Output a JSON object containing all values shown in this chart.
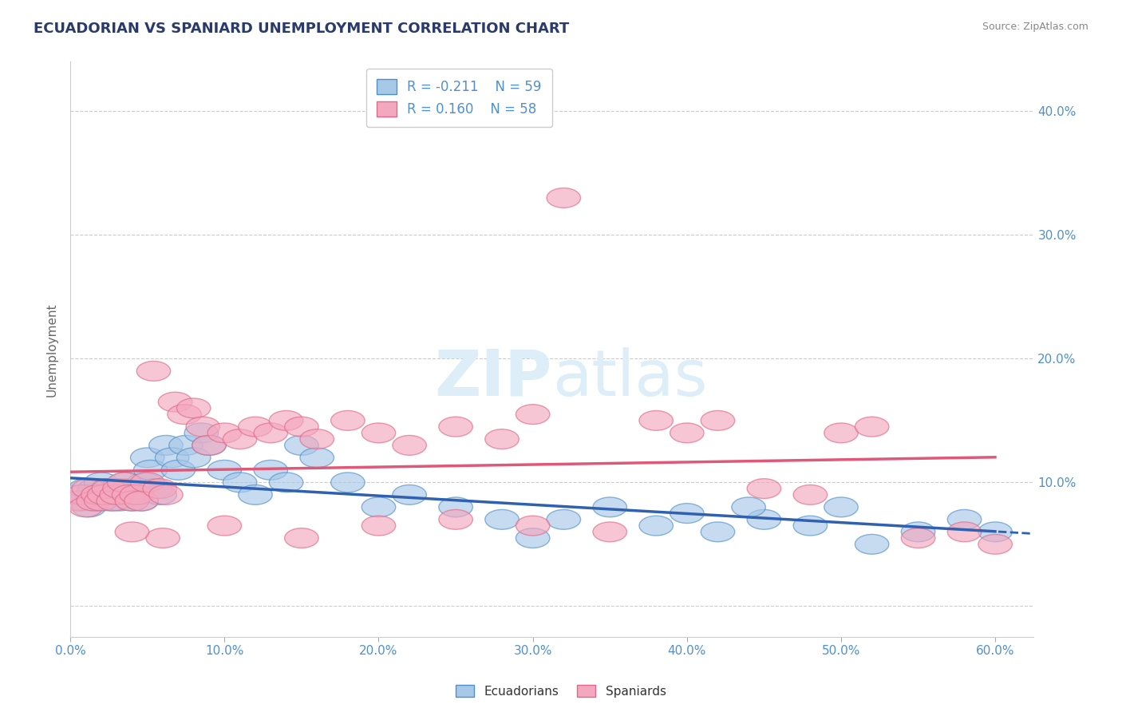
{
  "title": "ECUADORIAN VS SPANIARD UNEMPLOYMENT CORRELATION CHART",
  "source": "Source: ZipAtlas.com",
  "xlabel_ticks": [
    "0.0%",
    "10.0%",
    "20.0%",
    "30.0%",
    "40.0%",
    "50.0%",
    "60.0%"
  ],
  "xlim": [
    0.0,
    0.625
  ],
  "ylim": [
    -0.025,
    0.44
  ],
  "ylabel": "Unemployment",
  "blue_R": -0.211,
  "blue_N": 59,
  "pink_R": 0.16,
  "pink_N": 58,
  "blue_color": "#a8c8e8",
  "pink_color": "#f4a8bf",
  "blue_edge_color": "#5090c8",
  "pink_edge_color": "#e06888",
  "blue_line_color": "#3060b0",
  "pink_line_color": "#e05878",
  "title_color": "#2a3a6a",
  "axis_color": "#5090d0",
  "watermark_color": "#ddeef8",
  "background_color": "#ffffff",
  "blue_scatter_x": [
    0.005,
    0.008,
    0.01,
    0.012,
    0.014,
    0.016,
    0.018,
    0.02,
    0.022,
    0.024,
    0.026,
    0.028,
    0.03,
    0.032,
    0.034,
    0.036,
    0.038,
    0.04,
    0.042,
    0.044,
    0.046,
    0.048,
    0.05,
    0.052,
    0.055,
    0.058,
    0.062,
    0.066,
    0.07,
    0.075,
    0.08,
    0.085,
    0.09,
    0.1,
    0.11,
    0.12,
    0.13,
    0.14,
    0.15,
    0.16,
    0.18,
    0.2,
    0.22,
    0.25,
    0.28,
    0.3,
    0.32,
    0.35,
    0.38,
    0.4,
    0.42,
    0.45,
    0.48,
    0.5,
    0.52,
    0.55,
    0.58,
    0.6,
    0.44
  ],
  "blue_scatter_y": [
    0.09,
    0.085,
    0.095,
    0.08,
    0.09,
    0.095,
    0.085,
    0.1,
    0.09,
    0.095,
    0.085,
    0.09,
    0.095,
    0.085,
    0.09,
    0.1,
    0.095,
    0.085,
    0.09,
    0.095,
    0.085,
    0.1,
    0.12,
    0.11,
    0.095,
    0.09,
    0.13,
    0.12,
    0.11,
    0.13,
    0.12,
    0.14,
    0.13,
    0.11,
    0.1,
    0.09,
    0.11,
    0.1,
    0.13,
    0.12,
    0.1,
    0.08,
    0.09,
    0.08,
    0.07,
    0.055,
    0.07,
    0.08,
    0.065,
    0.075,
    0.06,
    0.07,
    0.065,
    0.08,
    0.05,
    0.06,
    0.07,
    0.06,
    0.08
  ],
  "pink_scatter_x": [
    0.005,
    0.008,
    0.01,
    0.012,
    0.015,
    0.018,
    0.02,
    0.022,
    0.025,
    0.028,
    0.03,
    0.032,
    0.035,
    0.038,
    0.04,
    0.043,
    0.046,
    0.05,
    0.054,
    0.058,
    0.062,
    0.068,
    0.074,
    0.08,
    0.086,
    0.09,
    0.1,
    0.11,
    0.12,
    0.13,
    0.14,
    0.15,
    0.16,
    0.18,
    0.2,
    0.22,
    0.25,
    0.28,
    0.3,
    0.32,
    0.35,
    0.38,
    0.4,
    0.42,
    0.45,
    0.48,
    0.5,
    0.52,
    0.55,
    0.58,
    0.6,
    0.25,
    0.3,
    0.2,
    0.15,
    0.1,
    0.06,
    0.04
  ],
  "pink_scatter_y": [
    0.085,
    0.09,
    0.08,
    0.095,
    0.085,
    0.09,
    0.085,
    0.09,
    0.095,
    0.085,
    0.09,
    0.095,
    0.1,
    0.09,
    0.085,
    0.09,
    0.085,
    0.1,
    0.19,
    0.095,
    0.09,
    0.165,
    0.155,
    0.16,
    0.145,
    0.13,
    0.14,
    0.135,
    0.145,
    0.14,
    0.15,
    0.145,
    0.135,
    0.15,
    0.14,
    0.13,
    0.145,
    0.135,
    0.155,
    0.33,
    0.06,
    0.15,
    0.14,
    0.15,
    0.095,
    0.09,
    0.14,
    0.145,
    0.055,
    0.06,
    0.05,
    0.07,
    0.065,
    0.065,
    0.055,
    0.065,
    0.055,
    0.06
  ]
}
